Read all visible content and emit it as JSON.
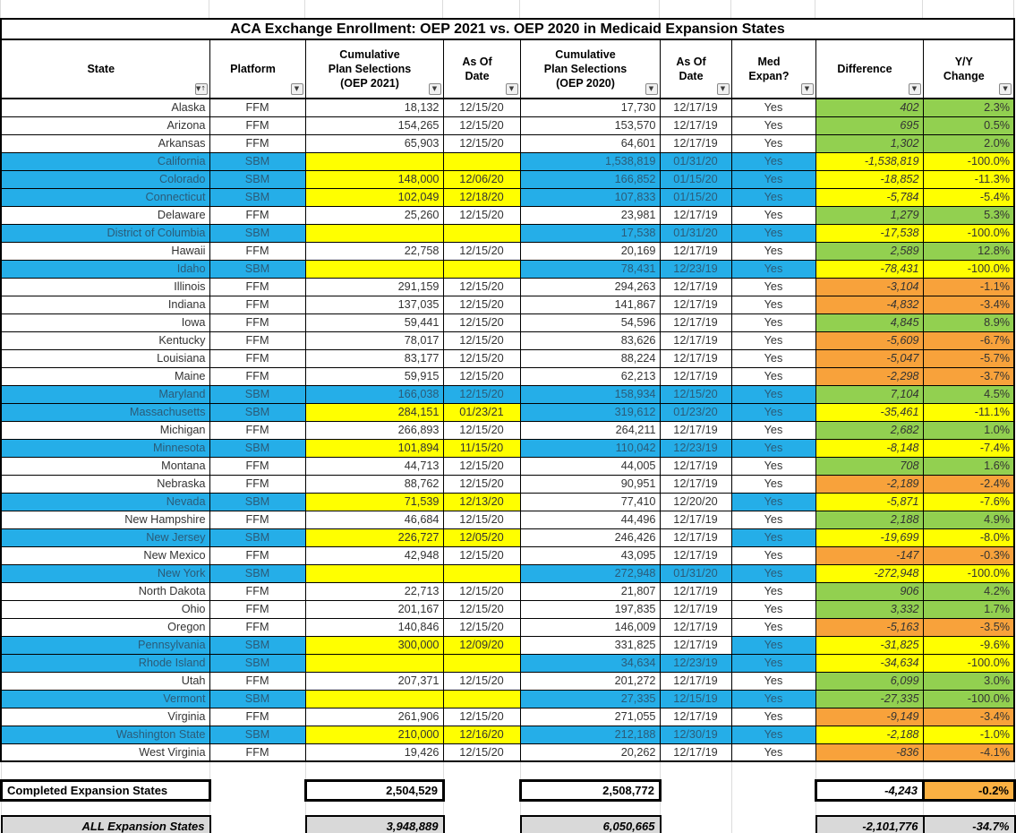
{
  "title": "ACA Exchange Enrollment: OEP 2021 vs. OEP 2020 in Medicaid Expansion States",
  "colors": {
    "sbm_row_blue": "#25aee8",
    "entry_yellow": "#ffff00",
    "positive_green": "#92d050",
    "negative_orange": "#f8a23b",
    "summary_amber": "#fbb042",
    "summary_gray": "#d9d9d9",
    "blue_row_text": "#2b5b78"
  },
  "columns": [
    {
      "label": "State",
      "filter": true,
      "sorted": true
    },
    {
      "label": "Platform",
      "filter": true,
      "sorted": false
    },
    {
      "label": "Cumulative\nPlan Selections\n(OEP 2021)",
      "filter": true,
      "sorted": false
    },
    {
      "label": "As Of\nDate",
      "filter": true,
      "sorted": false
    },
    {
      "label": "Cumulative\nPlan Selections\n(OEP 2020)",
      "filter": true,
      "sorted": false
    },
    {
      "label": "As Of\nDate",
      "filter": true,
      "sorted": false
    },
    {
      "label": "Med\nExpan?",
      "filter": true,
      "sorted": false
    },
    {
      "label": "Difference",
      "filter": true,
      "sorted": false
    },
    {
      "label": "Y/Y\nChange",
      "filter": true,
      "sorted": false
    }
  ],
  "filter_icon": "▼",
  "sort_asc_icon": "↑",
  "rows": [
    {
      "state": "Alaska",
      "platform": "FFM",
      "sel_2021": "18,132",
      "asof_2021": "12/15/20",
      "sel_2020": "17,730",
      "asof_2020": "12/17/19",
      "med_expan": "Yes",
      "difference": "402",
      "yy_change": "2.3%",
      "row_bg": "white",
      "c2021": "white",
      "c2020": "white",
      "diff_bg": "green"
    },
    {
      "state": "Arizona",
      "platform": "FFM",
      "sel_2021": "154,265",
      "asof_2021": "12/15/20",
      "sel_2020": "153,570",
      "asof_2020": "12/17/19",
      "med_expan": "Yes",
      "difference": "695",
      "yy_change": "0.5%",
      "row_bg": "white",
      "c2021": "white",
      "c2020": "white",
      "diff_bg": "green"
    },
    {
      "state": "Arkansas",
      "platform": "FFM",
      "sel_2021": "65,903",
      "asof_2021": "12/15/20",
      "sel_2020": "64,601",
      "asof_2020": "12/17/19",
      "med_expan": "Yes",
      "difference": "1,302",
      "yy_change": "2.0%",
      "row_bg": "white",
      "c2021": "white",
      "c2020": "white",
      "diff_bg": "green"
    },
    {
      "state": "California",
      "platform": "SBM",
      "sel_2021": "",
      "asof_2021": "",
      "sel_2020": "1,538,819",
      "asof_2020": "01/31/20",
      "med_expan": "Yes",
      "difference": "-1,538,819",
      "yy_change": "-100.0%",
      "row_bg": "blue",
      "c2021": "yellow",
      "c2020": "blue",
      "diff_bg": "yellow"
    },
    {
      "state": "Colorado",
      "platform": "SBM",
      "sel_2021": "148,000",
      "asof_2021": "12/06/20",
      "sel_2020": "166,852",
      "asof_2020": "01/15/20",
      "med_expan": "Yes",
      "difference": "-18,852",
      "yy_change": "-11.3%",
      "row_bg": "blue",
      "c2021": "yellow",
      "c2020": "blue",
      "diff_bg": "yellow"
    },
    {
      "state": "Connecticut",
      "platform": "SBM",
      "sel_2021": "102,049",
      "asof_2021": "12/18/20",
      "sel_2020": "107,833",
      "asof_2020": "01/15/20",
      "med_expan": "Yes",
      "difference": "-5,784",
      "yy_change": "-5.4%",
      "row_bg": "blue",
      "c2021": "yellow",
      "c2020": "blue",
      "diff_bg": "yellow"
    },
    {
      "state": "Delaware",
      "platform": "FFM",
      "sel_2021": "25,260",
      "asof_2021": "12/15/20",
      "sel_2020": "23,981",
      "asof_2020": "12/17/19",
      "med_expan": "Yes",
      "difference": "1,279",
      "yy_change": "5.3%",
      "row_bg": "white",
      "c2021": "white",
      "c2020": "white",
      "diff_bg": "green"
    },
    {
      "state": "District of Columbia",
      "platform": "SBM",
      "sel_2021": "",
      "asof_2021": "",
      "sel_2020": "17,538",
      "asof_2020": "01/31/20",
      "med_expan": "Yes",
      "difference": "-17,538",
      "yy_change": "-100.0%",
      "row_bg": "blue",
      "c2021": "yellow",
      "c2020": "blue",
      "diff_bg": "yellow"
    },
    {
      "state": "Hawaii",
      "platform": "FFM",
      "sel_2021": "22,758",
      "asof_2021": "12/15/20",
      "sel_2020": "20,169",
      "asof_2020": "12/17/19",
      "med_expan": "Yes",
      "difference": "2,589",
      "yy_change": "12.8%",
      "row_bg": "white",
      "c2021": "white",
      "c2020": "white",
      "diff_bg": "green"
    },
    {
      "state": "Idaho",
      "platform": "SBM",
      "sel_2021": "",
      "asof_2021": "",
      "sel_2020": "78,431",
      "asof_2020": "12/23/19",
      "med_expan": "Yes",
      "difference": "-78,431",
      "yy_change": "-100.0%",
      "row_bg": "blue",
      "c2021": "yellow",
      "c2020": "blue",
      "diff_bg": "yellow"
    },
    {
      "state": "Illinois",
      "platform": "FFM",
      "sel_2021": "291,159",
      "asof_2021": "12/15/20",
      "sel_2020": "294,263",
      "asof_2020": "12/17/19",
      "med_expan": "Yes",
      "difference": "-3,104",
      "yy_change": "-1.1%",
      "row_bg": "white",
      "c2021": "white",
      "c2020": "white",
      "diff_bg": "orange"
    },
    {
      "state": "Indiana",
      "platform": "FFM",
      "sel_2021": "137,035",
      "asof_2021": "12/15/20",
      "sel_2020": "141,867",
      "asof_2020": "12/17/19",
      "med_expan": "Yes",
      "difference": "-4,832",
      "yy_change": "-3.4%",
      "row_bg": "white",
      "c2021": "white",
      "c2020": "white",
      "diff_bg": "orange"
    },
    {
      "state": "Iowa",
      "platform": "FFM",
      "sel_2021": "59,441",
      "asof_2021": "12/15/20",
      "sel_2020": "54,596",
      "asof_2020": "12/17/19",
      "med_expan": "Yes",
      "difference": "4,845",
      "yy_change": "8.9%",
      "row_bg": "white",
      "c2021": "white",
      "c2020": "white",
      "diff_bg": "green"
    },
    {
      "state": "Kentucky",
      "platform": "FFM",
      "sel_2021": "78,017",
      "asof_2021": "12/15/20",
      "sel_2020": "83,626",
      "asof_2020": "12/17/19",
      "med_expan": "Yes",
      "difference": "-5,609",
      "yy_change": "-6.7%",
      "row_bg": "white",
      "c2021": "white",
      "c2020": "white",
      "diff_bg": "orange"
    },
    {
      "state": "Louisiana",
      "platform": "FFM",
      "sel_2021": "83,177",
      "asof_2021": "12/15/20",
      "sel_2020": "88,224",
      "asof_2020": "12/17/19",
      "med_expan": "Yes",
      "difference": "-5,047",
      "yy_change": "-5.7%",
      "row_bg": "white",
      "c2021": "white",
      "c2020": "white",
      "diff_bg": "orange"
    },
    {
      "state": "Maine",
      "platform": "FFM",
      "sel_2021": "59,915",
      "asof_2021": "12/15/20",
      "sel_2020": "62,213",
      "asof_2020": "12/17/19",
      "med_expan": "Yes",
      "difference": "-2,298",
      "yy_change": "-3.7%",
      "row_bg": "white",
      "c2021": "white",
      "c2020": "white",
      "diff_bg": "orange"
    },
    {
      "state": "Maryland",
      "platform": "SBM",
      "sel_2021": "166,038",
      "asof_2021": "12/15/20",
      "sel_2020": "158,934",
      "asof_2020": "12/15/20",
      "med_expan": "Yes",
      "difference": "7,104",
      "yy_change": "4.5%",
      "row_bg": "blue",
      "c2021": "blue",
      "c2020": "blue",
      "diff_bg": "green"
    },
    {
      "state": "Massachusetts",
      "platform": "SBM",
      "sel_2021": "284,151",
      "asof_2021": "01/23/21",
      "sel_2020": "319,612",
      "asof_2020": "01/23/20",
      "med_expan": "Yes",
      "difference": "-35,461",
      "yy_change": "-11.1%",
      "row_bg": "blue",
      "c2021": "yellow",
      "c2020": "blue",
      "diff_bg": "yellow"
    },
    {
      "state": "Michigan",
      "platform": "FFM",
      "sel_2021": "266,893",
      "asof_2021": "12/15/20",
      "sel_2020": "264,211",
      "asof_2020": "12/17/19",
      "med_expan": "Yes",
      "difference": "2,682",
      "yy_change": "1.0%",
      "row_bg": "white",
      "c2021": "white",
      "c2020": "white",
      "diff_bg": "green"
    },
    {
      "state": "Minnesota",
      "platform": "SBM",
      "sel_2021": "101,894",
      "asof_2021": "11/15/20",
      "sel_2020": "110,042",
      "asof_2020": "12/23/19",
      "med_expan": "Yes",
      "difference": "-8,148",
      "yy_change": "-7.4%",
      "row_bg": "blue",
      "c2021": "yellow",
      "c2020": "blue",
      "diff_bg": "yellow"
    },
    {
      "state": "Montana",
      "platform": "FFM",
      "sel_2021": "44,713",
      "asof_2021": "12/15/20",
      "sel_2020": "44,005",
      "asof_2020": "12/17/19",
      "med_expan": "Yes",
      "difference": "708",
      "yy_change": "1.6%",
      "row_bg": "white",
      "c2021": "white",
      "c2020": "white",
      "diff_bg": "green"
    },
    {
      "state": "Nebraska",
      "platform": "FFM",
      "sel_2021": "88,762",
      "asof_2021": "12/15/20",
      "sel_2020": "90,951",
      "asof_2020": "12/17/19",
      "med_expan": "Yes",
      "difference": "-2,189",
      "yy_change": "-2.4%",
      "row_bg": "white",
      "c2021": "white",
      "c2020": "white",
      "diff_bg": "orange"
    },
    {
      "state": "Nevada",
      "platform": "SBM",
      "sel_2021": "71,539",
      "asof_2021": "12/13/20",
      "sel_2020": "77,410",
      "asof_2020": "12/20/20",
      "med_expan": "Yes",
      "difference": "-5,871",
      "yy_change": "-7.6%",
      "row_bg": "blue",
      "c2021": "yellow",
      "c2020": "white",
      "diff_bg": "yellow"
    },
    {
      "state": "New Hampshire",
      "platform": "FFM",
      "sel_2021": "46,684",
      "asof_2021": "12/15/20",
      "sel_2020": "44,496",
      "asof_2020": "12/17/19",
      "med_expan": "Yes",
      "difference": "2,188",
      "yy_change": "4.9%",
      "row_bg": "white",
      "c2021": "white",
      "c2020": "white",
      "diff_bg": "green"
    },
    {
      "state": "New Jersey",
      "platform": "SBM",
      "sel_2021": "226,727",
      "asof_2021": "12/05/20",
      "sel_2020": "246,426",
      "asof_2020": "12/17/19",
      "med_expan": "Yes",
      "difference": "-19,699",
      "yy_change": "-8.0%",
      "row_bg": "blue",
      "c2021": "yellow",
      "c2020": "white",
      "diff_bg": "yellow"
    },
    {
      "state": "New Mexico",
      "platform": "FFM",
      "sel_2021": "42,948",
      "asof_2021": "12/15/20",
      "sel_2020": "43,095",
      "asof_2020": "12/17/19",
      "med_expan": "Yes",
      "difference": "-147",
      "yy_change": "-0.3%",
      "row_bg": "white",
      "c2021": "white",
      "c2020": "white",
      "diff_bg": "orange"
    },
    {
      "state": "New York",
      "platform": "SBM",
      "sel_2021": "",
      "asof_2021": "",
      "sel_2020": "272,948",
      "asof_2020": "01/31/20",
      "med_expan": "Yes",
      "difference": "-272,948",
      "yy_change": "-100.0%",
      "row_bg": "blue",
      "c2021": "yellow",
      "c2020": "blue",
      "diff_bg": "yellow"
    },
    {
      "state": "North Dakota",
      "platform": "FFM",
      "sel_2021": "22,713",
      "asof_2021": "12/15/20",
      "sel_2020": "21,807",
      "asof_2020": "12/17/19",
      "med_expan": "Yes",
      "difference": "906",
      "yy_change": "4.2%",
      "row_bg": "white",
      "c2021": "white",
      "c2020": "white",
      "diff_bg": "green"
    },
    {
      "state": "Ohio",
      "platform": "FFM",
      "sel_2021": "201,167",
      "asof_2021": "12/15/20",
      "sel_2020": "197,835",
      "asof_2020": "12/17/19",
      "med_expan": "Yes",
      "difference": "3,332",
      "yy_change": "1.7%",
      "row_bg": "white",
      "c2021": "white",
      "c2020": "white",
      "diff_bg": "green"
    },
    {
      "state": "Oregon",
      "platform": "FFM",
      "sel_2021": "140,846",
      "asof_2021": "12/15/20",
      "sel_2020": "146,009",
      "asof_2020": "12/17/19",
      "med_expan": "Yes",
      "difference": "-5,163",
      "yy_change": "-3.5%",
      "row_bg": "white",
      "c2021": "white",
      "c2020": "white",
      "diff_bg": "orange"
    },
    {
      "state": "Pennsylvania",
      "platform": "SBM",
      "sel_2021": "300,000",
      "asof_2021": "12/09/20",
      "sel_2020": "331,825",
      "asof_2020": "12/17/19",
      "med_expan": "Yes",
      "difference": "-31,825",
      "yy_change": "-9.6%",
      "row_bg": "blue",
      "c2021": "yellow",
      "c2020": "white",
      "diff_bg": "yellow"
    },
    {
      "state": "Rhode Island",
      "platform": "SBM",
      "sel_2021": "",
      "asof_2021": "",
      "sel_2020": "34,634",
      "asof_2020": "12/23/19",
      "med_expan": "Yes",
      "difference": "-34,634",
      "yy_change": "-100.0%",
      "row_bg": "blue",
      "c2021": "yellow",
      "c2020": "blue",
      "diff_bg": "yellow"
    },
    {
      "state": "Utah",
      "platform": "FFM",
      "sel_2021": "207,371",
      "asof_2021": "12/15/20",
      "sel_2020": "201,272",
      "asof_2020": "12/17/19",
      "med_expan": "Yes",
      "difference": "6,099",
      "yy_change": "3.0%",
      "row_bg": "white",
      "c2021": "white",
      "c2020": "white",
      "diff_bg": "green"
    },
    {
      "state": "Vermont",
      "platform": "SBM",
      "sel_2021": "",
      "asof_2021": "",
      "sel_2020": "27,335",
      "asof_2020": "12/15/19",
      "med_expan": "Yes",
      "difference": "-27,335",
      "yy_change": "-100.0%",
      "row_bg": "blue",
      "c2021": "yellow",
      "c2020": "blue",
      "diff_bg": "green"
    },
    {
      "state": "Virginia",
      "platform": "FFM",
      "sel_2021": "261,906",
      "asof_2021": "12/15/20",
      "sel_2020": "271,055",
      "asof_2020": "12/17/19",
      "med_expan": "Yes",
      "difference": "-9,149",
      "yy_change": "-3.4%",
      "row_bg": "white",
      "c2021": "white",
      "c2020": "white",
      "diff_bg": "orange"
    },
    {
      "state": "Washington State",
      "platform": "SBM",
      "sel_2021": "210,000",
      "asof_2021": "12/16/20",
      "sel_2020": "212,188",
      "asof_2020": "12/30/19",
      "med_expan": "Yes",
      "difference": "-2,188",
      "yy_change": "-1.0%",
      "row_bg": "blue",
      "c2021": "yellow",
      "c2020": "blue",
      "diff_bg": "yellow"
    },
    {
      "state": "West Virginia",
      "platform": "FFM",
      "sel_2021": "19,426",
      "asof_2021": "12/15/20",
      "sel_2020": "20,262",
      "asof_2020": "12/17/19",
      "med_expan": "Yes",
      "difference": "-836",
      "yy_change": "-4.1%",
      "row_bg": "white",
      "c2021": "white",
      "c2020": "white",
      "diff_bg": "orange"
    }
  ],
  "summary_rows": [
    {
      "label": "Completed Expansion States",
      "sel_2021": "2,504,529",
      "sel_2020": "2,508,772",
      "difference": "-4,243",
      "yy_change": "-0.2%",
      "style": "completed"
    },
    {
      "label": "ALL Expansion States",
      "sel_2021": "3,948,889",
      "sel_2020": "6,050,665",
      "difference": "-2,101,776",
      "yy_change": "-34.7%",
      "style": "all"
    }
  ]
}
